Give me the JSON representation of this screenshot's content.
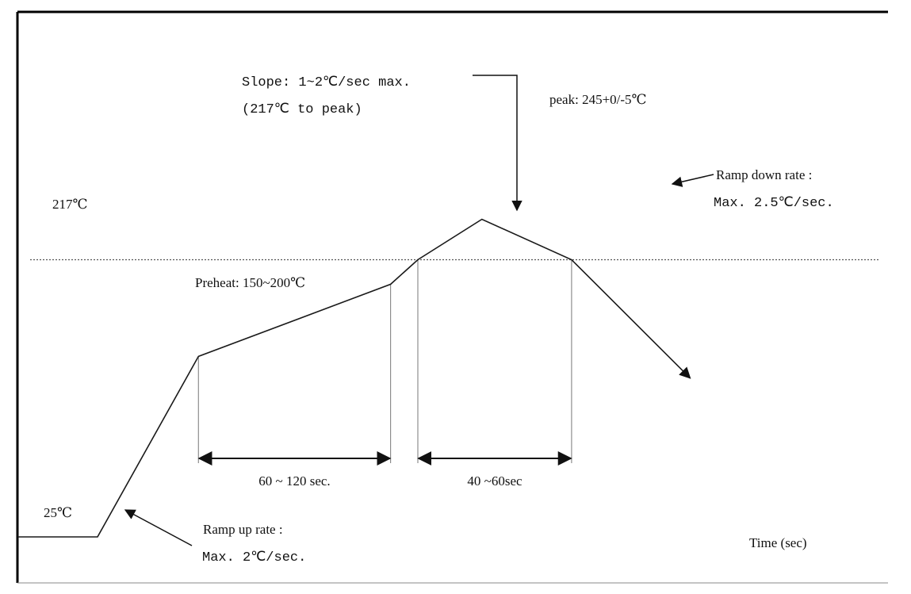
{
  "chart_data": {
    "type": "line",
    "title": "",
    "xlabel": "Time (sec)",
    "ylabel": "",
    "grid": false,
    "legend": "none",
    "colors": {
      "curve": "#1a1a1a",
      "reference": "#555555",
      "frame": "#000000"
    },
    "series": [
      {
        "values_note": "",
        "points": [
          {
            "t": 0,
            "temp": 25
          },
          {
            "t": 50,
            "temp": 25
          },
          {
            "t": 113,
            "temp": 150
          },
          {
            "t": 233,
            "temp": 200
          },
          {
            "t": 250,
            "temp": 217
          },
          {
            "t": 290,
            "temp": 245
          },
          {
            "t": 346,
            "temp": 217
          },
          {
            "t": 420,
            "temp": 135
          }
        ]
      }
    ],
    "reference_line": {
      "temp": 217,
      "label": "217℃"
    },
    "baseline_label": "25℃",
    "annotations": {
      "slope_line1": "Slope: 1~2℃/sec max.",
      "slope_line2": "(217℃ to peak)",
      "peak": "peak: 245+0/-5℃",
      "ramp_down_line1": "Ramp down rate :",
      "ramp_down_line2": "Max. 2.5℃/sec.",
      "preheat": "Preheat: 150~200℃",
      "ramp_up_line1": "Ramp up rate :",
      "ramp_up_line2": "Max. 2℃/sec."
    },
    "intervals": [
      {
        "from_t": 113,
        "to_t": 233,
        "label": "60 ~ 120 sec."
      },
      {
        "from_t": 250,
        "to_t": 346,
        "label": "40 ~60sec"
      }
    ]
  }
}
